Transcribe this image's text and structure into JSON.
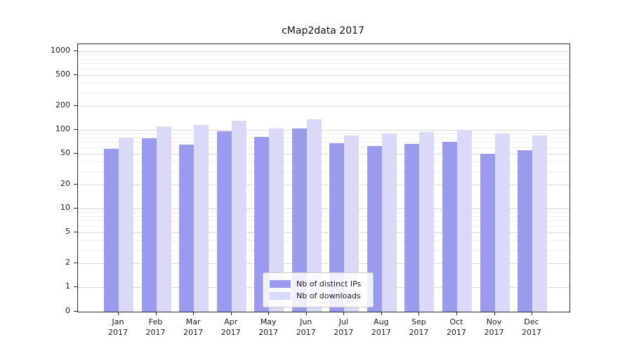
{
  "chart_data": {
    "type": "bar",
    "title": "cMap2data 2017",
    "yscale": "log",
    "grid": "on",
    "legend_position": "lower center",
    "categories": [
      "Jan",
      "Feb",
      "Mar",
      "Apr",
      "May",
      "Jun",
      "Jul",
      "Aug",
      "Sep",
      "Oct",
      "Nov",
      "Dec"
    ],
    "year_label": "2017",
    "yticks": [
      0,
      1,
      2,
      5,
      10,
      20,
      50,
      100,
      200,
      500,
      1000
    ],
    "ylim": [
      0,
      1000
    ],
    "series": [
      {
        "name": "Nb of distinct IPs",
        "color": "#9b9bee",
        "values": [
          57,
          78,
          65,
          97,
          82,
          105,
          68,
          62,
          66,
          70,
          50,
          55
        ]
      },
      {
        "name": "Nb of downloads",
        "color": "#d9d9f8",
        "values": [
          80,
          110,
          115,
          130,
          105,
          135,
          85,
          90,
          95,
          100,
          90,
          85
        ]
      }
    ]
  }
}
